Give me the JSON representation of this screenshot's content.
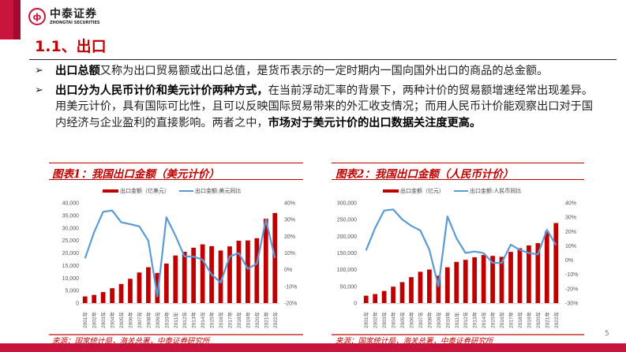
{
  "header": {
    "logo_cn": "中泰证券",
    "logo_en": "ZHONGTAI SECURITIES",
    "section_title": "1.1、出口"
  },
  "bullets": [
    {
      "bold": "出口总额",
      "text": "又称为出口贸易额或出口总值，是货币表示的一定时期内一国向国外出口的商品的总金额。"
    },
    {
      "bold": "出口分为人民币计价和美元计价两种方式，",
      "text": "在当前浮动汇率的背景下，两种计价的贸易额增速经常出现差异。用美元计价，具有国际可比性，且可以反映国际贸易带来的外汇收支情况；而用人民币计价能观察出口对于国内经济与企业盈利的直接影响。两者之中，",
      "bold_end": "市场对于美元计价的出口数据关注度更高。"
    }
  ],
  "footer": {
    "source_left": "来源：国家统计局，海关总署，中泰证券研究所",
    "source_right": "来源：国家统计局，海关总署，中泰证券研究所",
    "page_number": "5"
  },
  "colors": {
    "brand_red": "#c8143c",
    "bar_red": "#c00000",
    "line_blue": "#5b9bd5"
  },
  "chart_data": [
    {
      "type": "bar+line",
      "title": "图表1：我国出口金额（美元计价）",
      "categories": [
        "2001年",
        "2002年",
        "2003年",
        "2004年",
        "2005年",
        "2006年",
        "2007年",
        "2008年",
        "2009年",
        "2010年",
        "2011年",
        "2012年",
        "2013年",
        "2014年",
        "2015年",
        "2016年",
        "2017年",
        "2018年",
        "2019年",
        "2020年",
        "2021年",
        "2022年"
      ],
      "series": [
        {
          "name": "出口金额（亿美元）",
          "type": "bar",
          "axis": "left",
          "values": [
            2661,
            3256,
            4382,
            5933,
            7620,
            9689,
            12201,
            14307,
            12016,
            15778,
            18984,
            20487,
            22090,
            23423,
            22735,
            20976,
            22633,
            24867,
            24995,
            25900,
            33640,
            35936
          ]
        },
        {
          "name": "出口金额:美元同比",
          "type": "line",
          "axis": "right",
          "values": [
            6.8,
            22.4,
            34.6,
            35.4,
            28.4,
            27.2,
            25.9,
            17.3,
            -16.0,
            31.3,
            20.3,
            7.9,
            7.8,
            6.0,
            -2.9,
            -7.7,
            7.9,
            9.9,
            0.5,
            3.6,
            29.9,
            7.0
          ]
        }
      ],
      "yleft_ticks": [
        "0",
        "5,000",
        "10,000",
        "15,000",
        "20,000",
        "25,000",
        "30,000",
        "35,000",
        "40,000"
      ],
      "yright_ticks": [
        "-20%",
        "-10%",
        "0%",
        "10%",
        "20%",
        "30%",
        "40%"
      ],
      "ylim_left": [
        0,
        40000
      ],
      "ylim_right": [
        -20,
        40
      ],
      "legend_position": "top"
    },
    {
      "type": "bar+line",
      "title": "图表2：我国出口金额（人民币计价）",
      "categories": [
        "2001年",
        "2002年",
        "2003年",
        "2004年",
        "2005年",
        "2006年",
        "2007年",
        "2008年",
        "2009年",
        "2010年",
        "2011年",
        "2012年",
        "2013年",
        "2014年",
        "2015年",
        "2016年",
        "2017年",
        "2018年",
        "2019年",
        "2020年",
        "2021年",
        "2022年"
      ],
      "series": [
        {
          "name": "出口金额（亿元）",
          "type": "bar",
          "axis": "left",
          "values": [
            22024,
            26948,
            36288,
            49103,
            62648,
            77597,
            93627,
            100395,
            82030,
            107023,
            123241,
            129359,
            137131,
            143884,
            141167,
            138419,
            153309,
            164128,
            172374,
            179326,
            214255,
            239654
          ]
        },
        {
          "name": "出口金额:人民币同比",
          "type": "line",
          "axis": "right",
          "values": [
            6.8,
            22.4,
            34.6,
            35.4,
            28.4,
            23.9,
            20.7,
            7.2,
            -18.3,
            30.5,
            15.2,
            5.0,
            6.0,
            4.9,
            -1.9,
            -2.0,
            10.8,
            7.1,
            5.0,
            4.0,
            21.2,
            10.5
          ]
        }
      ],
      "yleft_ticks": [
        "0",
        "50,000",
        "100,000",
        "150,000",
        "200,000",
        "250,000",
        "300,000"
      ],
      "yright_ticks": [
        "-30%",
        "-20%",
        "-10%",
        "0%",
        "10%",
        "20%",
        "30%",
        "40%"
      ],
      "ylim_left": [
        0,
        300000
      ],
      "ylim_right": [
        -30,
        40
      ],
      "legend_position": "top"
    }
  ]
}
